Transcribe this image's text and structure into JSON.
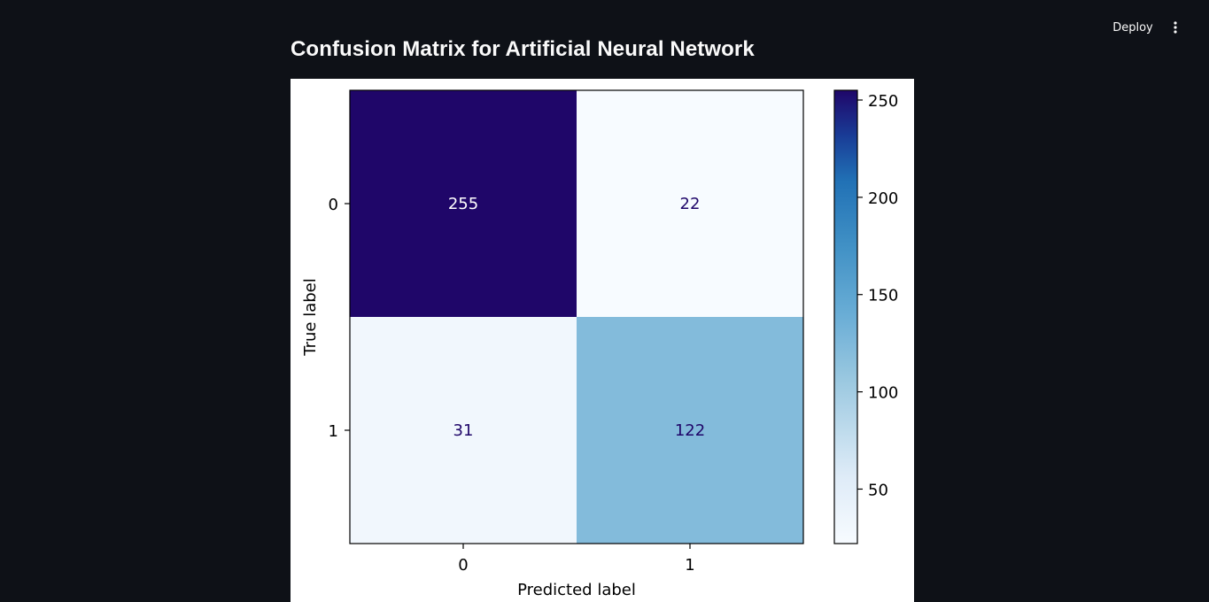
{
  "header": {
    "deploy_label": "Deploy"
  },
  "icons": {
    "menu": "vertical-dots-icon"
  },
  "section_title": "Confusion Matrix for Artificial Neural Network",
  "chart_data": {
    "type": "heatmap",
    "x_categories": [
      "0",
      "1"
    ],
    "y_categories": [
      "0",
      "1"
    ],
    "matrix": [
      [
        255,
        22
      ],
      [
        31,
        122
      ]
    ],
    "xlabel": "Predicted label",
    "ylabel": "True label",
    "colormap": "Blues",
    "colorbar": {
      "min": 22,
      "max": 255,
      "ticks": [
        50,
        100,
        150,
        200,
        250
      ]
    },
    "colors": {
      "max_cell": "#1f0669",
      "dark_text": "#1f0669",
      "light_text": "#ffffff"
    }
  }
}
